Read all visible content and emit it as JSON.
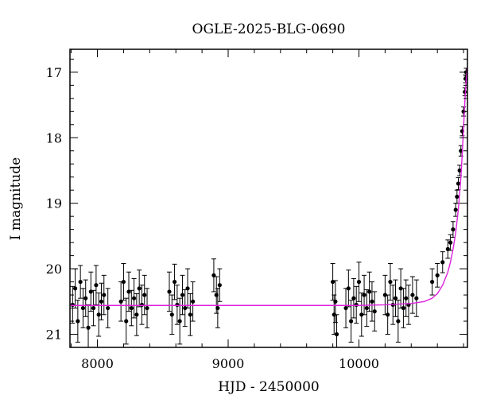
{
  "chart_data": {
    "type": "scatter",
    "title": "OGLE-2025-BLG-0690",
    "xlabel": "HJD - 2450000",
    "ylabel": "I magnitude",
    "xlim": [
      7790,
      10830
    ],
    "ylim": [
      21.2,
      16.65
    ],
    "y_inverted": true,
    "xticks": [
      8000,
      9000,
      10000
    ],
    "xtick_labels": [
      "8000",
      "9000",
      "10000"
    ],
    "yticks": [
      17,
      18,
      19,
      20,
      21
    ],
    "ytick_labels": [
      "17",
      "18",
      "19",
      "20",
      "21"
    ],
    "grid": false,
    "legend": "none",
    "colors": {
      "points": "#000000",
      "model": "#dd22dd",
      "axes": "#000000"
    },
    "series": [
      {
        "kind": "points_with_errorbars",
        "x": [
          7810,
          7830,
          7850,
          7870,
          7890,
          7910,
          7930,
          7950,
          7970,
          7990,
          8010,
          8030,
          8050,
          8080,
          8180,
          8200,
          8220,
          8240,
          8260,
          8280,
          8300,
          8320,
          8340,
          8360,
          8380,
          8550,
          8570,
          8590,
          8610,
          8630,
          8650,
          8670,
          8690,
          8710,
          8730,
          8890,
          8910,
          8920,
          8935,
          9800,
          9810,
          9820,
          9830,
          9900,
          9920,
          9940,
          9960,
          9980,
          10000,
          10020,
          10040,
          10060,
          10080,
          10100,
          10120,
          10200,
          10220,
          10240,
          10260,
          10280,
          10300,
          10320,
          10340,
          10360,
          10380,
          10410,
          10440,
          10560,
          10600,
          10640,
          10680,
          10700,
          10720,
          10740,
          10750,
          10760,
          10770,
          10780,
          10790,
          10800,
          10810,
          10815,
          10820
        ],
        "y": [
          20.55,
          20.3,
          20.8,
          20.2,
          20.6,
          20.45,
          20.9,
          20.35,
          20.6,
          20.25,
          20.7,
          20.5,
          20.4,
          20.6,
          20.5,
          20.2,
          20.8,
          20.35,
          20.6,
          20.45,
          20.7,
          20.3,
          20.55,
          20.4,
          20.6,
          20.35,
          20.7,
          20.2,
          20.55,
          20.8,
          20.4,
          20.6,
          20.3,
          20.7,
          20.5,
          20.1,
          20.4,
          20.6,
          20.25,
          20.2,
          20.7,
          20.5,
          21.0,
          20.6,
          20.3,
          20.8,
          20.45,
          20.55,
          20.2,
          20.7,
          20.4,
          20.6,
          20.35,
          20.5,
          20.65,
          20.4,
          20.7,
          20.2,
          20.55,
          20.45,
          20.8,
          20.3,
          20.6,
          20.45,
          20.55,
          20.4,
          20.45,
          20.2,
          20.1,
          19.9,
          19.7,
          19.6,
          19.4,
          19.1,
          18.9,
          18.7,
          18.5,
          18.2,
          17.9,
          17.6,
          17.3,
          17.1,
          17.0
        ],
        "err": [
          0.28,
          0.3,
          0.32,
          0.25,
          0.3,
          0.28,
          0.35,
          0.3,
          0.27,
          0.3,
          0.33,
          0.28,
          0.3,
          0.3,
          0.3,
          0.28,
          0.35,
          0.3,
          0.27,
          0.3,
          0.32,
          0.28,
          0.3,
          0.3,
          0.3,
          0.3,
          0.3,
          0.27,
          0.3,
          0.35,
          0.3,
          0.28,
          0.3,
          0.32,
          0.3,
          0.25,
          0.28,
          0.3,
          0.25,
          0.28,
          0.3,
          0.32,
          0.3,
          0.3,
          0.28,
          0.32,
          0.3,
          0.28,
          0.3,
          0.33,
          0.3,
          0.28,
          0.3,
          0.3,
          0.3,
          0.3,
          0.3,
          0.28,
          0.3,
          0.28,
          0.32,
          0.3,
          0.3,
          0.28,
          0.3,
          0.28,
          0.28,
          0.2,
          0.18,
          0.16,
          0.14,
          0.12,
          0.12,
          0.1,
          0.1,
          0.09,
          0.08,
          0.08,
          0.07,
          0.07,
          0.06,
          0.06,
          0.06
        ]
      },
      {
        "kind": "model_curve",
        "x": [
          7790,
          8500,
          9000,
          9500,
          10000,
          10200,
          10400,
          10500,
          10560,
          10600,
          10640,
          10680,
          10700,
          10720,
          10740,
          10760,
          10780,
          10790,
          10800,
          10810,
          10820,
          10828
        ],
        "y": [
          20.56,
          20.56,
          20.56,
          20.56,
          20.56,
          20.55,
          20.53,
          20.5,
          20.45,
          20.38,
          20.25,
          20.05,
          19.9,
          19.7,
          19.45,
          19.1,
          18.6,
          18.25,
          17.85,
          17.45,
          17.12,
          16.95
        ]
      }
    ]
  }
}
